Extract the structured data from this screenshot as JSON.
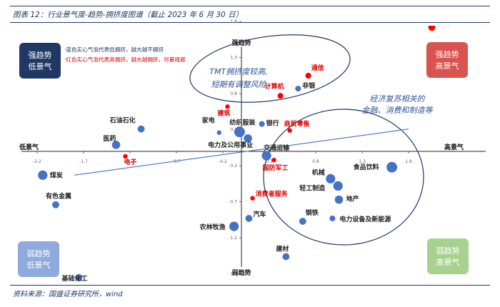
{
  "figure": {
    "title": "图表 12：行业景气度-趋势-拥挤度图谱（截止 2023 年 6 月 30 日）",
    "source": "资料来源：国盛证券研究所，wind"
  },
  "colors": {
    "navy": "#1f3864",
    "red_quad": "#d9534f",
    "blue_quad": "#8faadc",
    "green_quad": "#a9d18e",
    "dot_blue": "#4472c4",
    "dot_red": "#ff0000",
    "label_red": "#e00000",
    "label_dark": "#222222",
    "callout": "#2f5597"
  },
  "legend_notes": [
    {
      "text": "·蓝色实心气泡代表低拥挤，越大越不拥挤",
      "color": "#1f3864"
    },
    {
      "text": "·红色实心气泡代表高拥挤，越大越拥挤，尽量规避",
      "color": "#e00000"
    }
  ],
  "quadrants": [
    {
      "id": "tl",
      "line1": "强趋势",
      "line2": "低景气"
    },
    {
      "id": "tr",
      "line1": "强趋势",
      "line2": "高景气"
    },
    {
      "id": "bl",
      "line1": "弱趋势",
      "line2": "低景气"
    },
    {
      "id": "br",
      "line1": "弱趋势",
      "line2": "高景气"
    }
  ],
  "callouts": [
    {
      "id": "tmt",
      "lines": [
        "TMT拥挤度较高,",
        "短期有调整风险"
      ]
    },
    {
      "id": "econ",
      "lines": [
        "经济复苏相关的",
        "金融、消费和制造等"
      ]
    }
  ],
  "chart_data": {
    "type": "scatter",
    "x_axis": {
      "label_left": "低景气",
      "label_right": "高景气",
      "range": [
        -2.2,
        2.4
      ],
      "ticks": [
        -2.2,
        -1.7,
        -1.2,
        -0.7,
        -0.2,
        0.3,
        0.8,
        1.3,
        1.8
      ]
    },
    "y_axis": {
      "label_top": "强趋势",
      "label_bottom": "弱趋势",
      "range": [
        -2.0,
        2.0
      ],
      "ticks": [
        1.8,
        1.3,
        0.8,
        0.3,
        -0.2,
        -0.7,
        -1.2,
        -1.7
      ]
    },
    "trendline": {
      "x": [
        -1.8,
        1.8
      ],
      "y": [
        -0.33,
        0.31
      ]
    },
    "points": [
      {
        "name": "传媒",
        "x": 2.05,
        "y": 1.72,
        "size": 4,
        "crowding": "high"
      },
      {
        "name": "通信",
        "x": 0.72,
        "y": 1.05,
        "size": 3,
        "crowding": "high"
      },
      {
        "name": "非银",
        "x": 0.61,
        "y": 0.87,
        "size": 3,
        "crowding": "low"
      },
      {
        "name": "计算机",
        "x": 0.42,
        "y": 0.77,
        "size": 3,
        "crowding": "high"
      },
      {
        "name": "建筑",
        "x": -0.15,
        "y": 0.62,
        "size": 2,
        "crowding": "high"
      },
      {
        "name": "石油石化",
        "x": -1.08,
        "y": 0.31,
        "size": 4,
        "crowding": "low"
      },
      {
        "name": "纺织服装",
        "x": -0.02,
        "y": 0.27,
        "size": 7,
        "crowding": "low"
      },
      {
        "name": "银行",
        "x": 0.22,
        "y": 0.38,
        "size": 3,
        "crowding": "low"
      },
      {
        "name": "家电",
        "x": -0.24,
        "y": 0.26,
        "size": 2,
        "crowding": "low"
      },
      {
        "name": "商贸零售",
        "x": 0.52,
        "y": 0.29,
        "size": 2,
        "crowding": "high"
      },
      {
        "name": "电力及公用事业",
        "x": 0.07,
        "y": 0.18,
        "size": 5,
        "crowding": "low"
      },
      {
        "name": "交通运输",
        "x": 0.27,
        "y": -0.06,
        "size": 6,
        "crowding": "low"
      },
      {
        "name": "医药",
        "x": -1.35,
        "y": 0.09,
        "size": 5,
        "crowding": "low"
      },
      {
        "name": "电子",
        "x": -1.25,
        "y": -0.07,
        "size": 2,
        "crowding": "high"
      },
      {
        "name": "国防军工",
        "x": 0.35,
        "y": -0.12,
        "size": 2,
        "crowding": "high"
      },
      {
        "name": "机械",
        "x": 0.96,
        "y": -0.38,
        "size": 6,
        "crowding": "low"
      },
      {
        "name": "食品饮料",
        "x": 1.62,
        "y": -0.22,
        "size": 7,
        "crowding": "low"
      },
      {
        "name": "轻工制造",
        "x": 1.04,
        "y": -0.48,
        "size": 6,
        "crowding": "low"
      },
      {
        "name": "地产",
        "x": 1.05,
        "y": -0.67,
        "size": 5,
        "crowding": "low"
      },
      {
        "name": "煤炭",
        "x": -2.14,
        "y": -0.33,
        "size": 6,
        "crowding": "low"
      },
      {
        "name": "有色金属",
        "x": -2.0,
        "y": -0.74,
        "size": 4,
        "crowding": "low"
      },
      {
        "name": "消费者服务",
        "x": 0.12,
        "y": -0.65,
        "size": 2,
        "crowding": "high"
      },
      {
        "name": "汽车",
        "x": 0.08,
        "y": -0.93,
        "size": 4,
        "crowding": "low"
      },
      {
        "name": "钢铁",
        "x": 0.66,
        "y": -0.97,
        "size": 4,
        "crowding": "low"
      },
      {
        "name": "电力设备及新能源",
        "x": 0.98,
        "y": -0.93,
        "size": 3,
        "crowding": "low"
      },
      {
        "name": "农林牧渔",
        "x": -0.08,
        "y": -1.04,
        "size": 6,
        "crowding": "low"
      },
      {
        "name": "建材",
        "x": 0.48,
        "y": -1.46,
        "size": 4,
        "crowding": "low"
      },
      {
        "name": "基础化工",
        "x": -1.75,
        "y": -1.75,
        "size": 4,
        "crowding": "low"
      }
    ]
  }
}
